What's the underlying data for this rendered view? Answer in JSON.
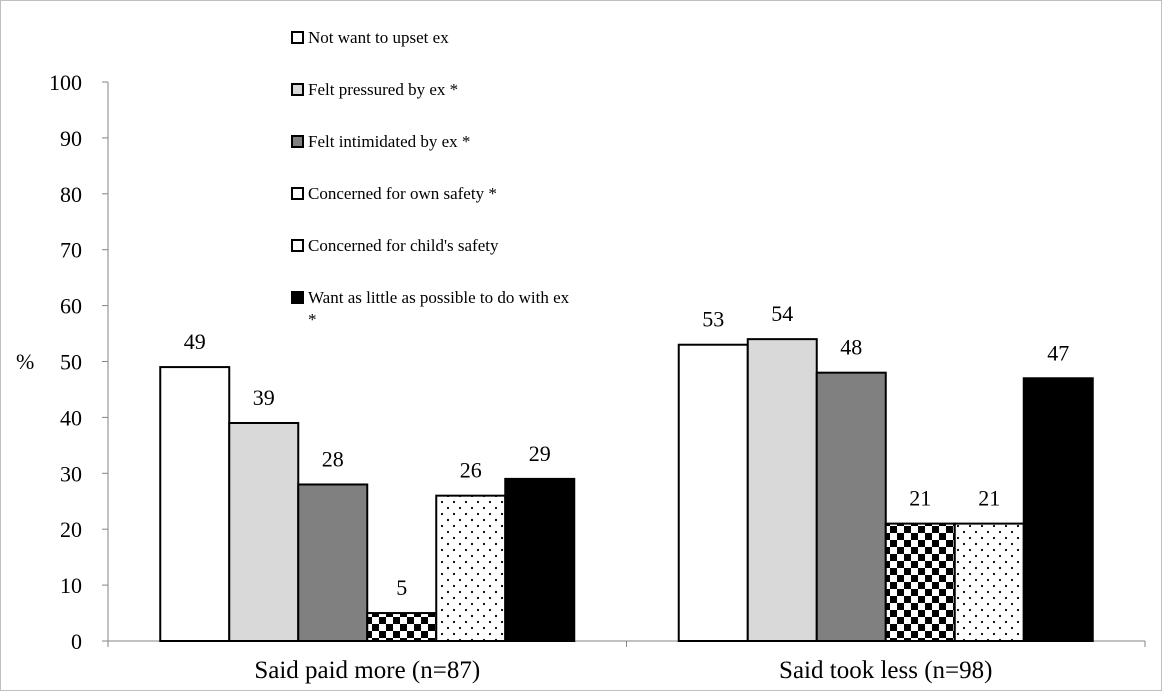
{
  "chart_data": {
    "type": "bar",
    "ylabel": "%",
    "ylim": [
      0,
      100
    ],
    "yticks": [
      0,
      10,
      20,
      30,
      40,
      50,
      60,
      70,
      80,
      90,
      100
    ],
    "categories": [
      "Said paid more (n=87)",
      "Said took less (n=98)"
    ],
    "series": [
      {
        "name": "Not want to upset ex",
        "values": [
          49,
          53
        ],
        "fill": "white"
      },
      {
        "name": "Felt pressured by ex *",
        "values": [
          39,
          54
        ],
        "fill": "lightgray"
      },
      {
        "name": "Felt intimidated by ex *",
        "values": [
          28,
          48
        ],
        "fill": "gray"
      },
      {
        "name": "Concerned for own safety *",
        "values": [
          5,
          21
        ],
        "fill": "checker"
      },
      {
        "name": "Concerned for child's safety",
        "values": [
          26,
          21
        ],
        "fill": "dots"
      },
      {
        "name": "Want as little as possible to do with ex *",
        "values": [
          29,
          47
        ],
        "fill": "black"
      }
    ],
    "legend_position": "top-center",
    "grid": false,
    "colors": {
      "white": "#ffffff",
      "lightgray": "#d9d9d9",
      "gray": "#808080",
      "black": "#000000",
      "outline": "#000000",
      "axis": "#868686"
    }
  }
}
